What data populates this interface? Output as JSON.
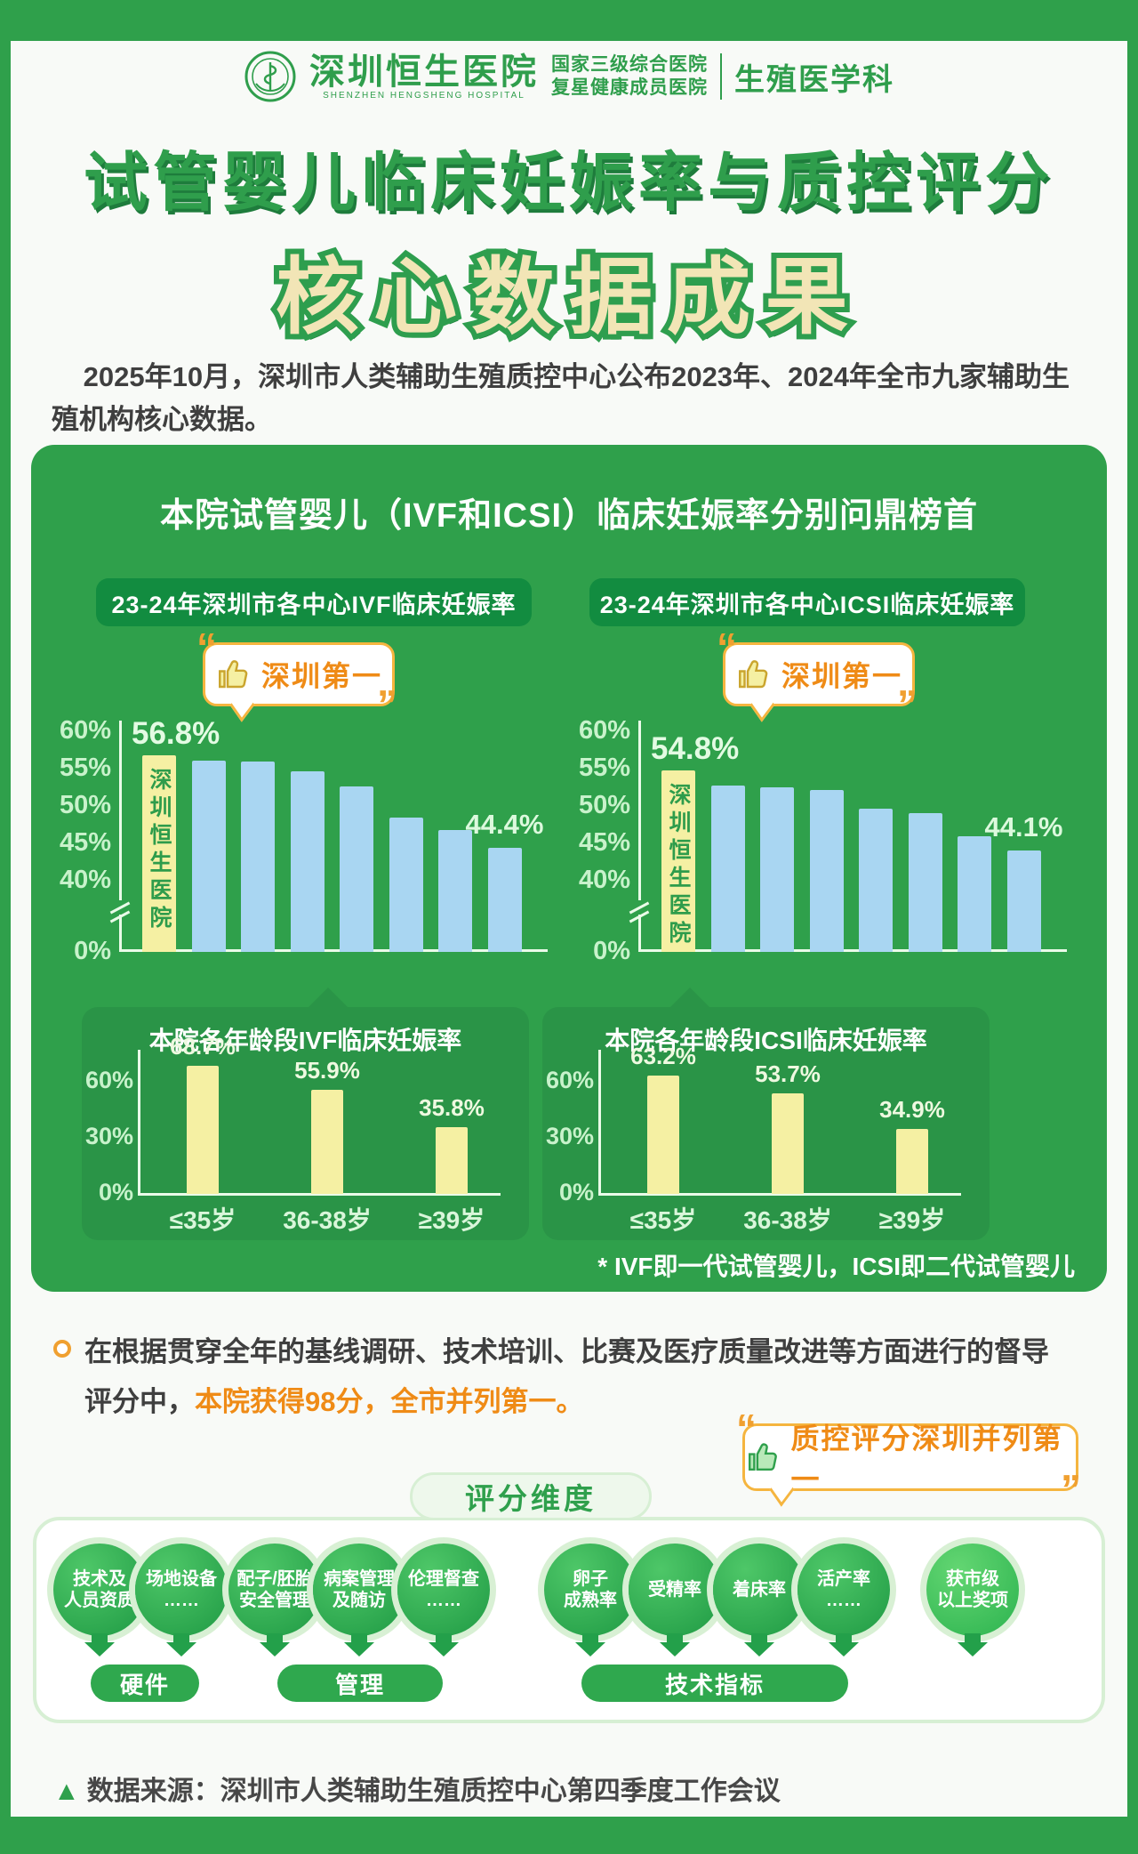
{
  "header": {
    "hospital_name": "深圳恒生医院",
    "hospital_name_en": "SHENZHEN HENGSHENG HOSPITAL",
    "accreditation_line1": "国家三级综合医院",
    "accreditation_line2": "复星健康成员医院",
    "department": "生殖医学科"
  },
  "title": {
    "line1": "试管婴儿临床妊娠率与质控评分",
    "line2": "核心数据成果"
  },
  "intro": "2025年10月，深圳市人类辅助生殖质控中心公布2023年、2024年全市九家辅助生殖机构核心数据。",
  "panel": {
    "title": "本院试管婴儿（IVF和ICSI）临床妊娠率分别问鼎榜首",
    "footnote": "* IVF即一代试管婴儿，ICSI即二代试管婴儿"
  },
  "score_paragraph": {
    "prefix": "在根据贯穿全年的基线调研、技术培训、比赛及医疗质量改进等方面进行的督导评分中，",
    "highlight": "本院获得98分，全市并列第一。"
  },
  "score_badge": "质控评分深圳并列第一",
  "dimensions": {
    "tab": "评分维度",
    "pins": [
      {
        "lines": [
          "技术及",
          "人员资质"
        ]
      },
      {
        "lines": [
          "场地设备",
          "……"
        ]
      },
      {
        "lines": [
          "配子/胚胎",
          "安全管理"
        ]
      },
      {
        "lines": [
          "病案管理",
          "及随访"
        ]
      },
      {
        "lines": [
          "伦理督查",
          "……"
        ]
      },
      {
        "lines": [
          "卵子",
          "成熟率"
        ]
      },
      {
        "lines": [
          "受精率"
        ]
      },
      {
        "lines": [
          "着床率"
        ]
      },
      {
        "lines": [
          "活产率",
          "……"
        ]
      },
      {
        "lines": [
          "获市级",
          "以上奖项"
        ]
      }
    ],
    "groups": [
      "硬件",
      "管理",
      "技术指标"
    ]
  },
  "footer": "数据来源：深圳市人类辅助生殖质控中心第四季度工作会议",
  "colors": {
    "brand_green": "#2fa04b",
    "dark_green_pill": "#128c40",
    "age_panel_green": "#2a9447",
    "yellow_bar": "#f5f0a3",
    "blue_bar": "#a9d6f2",
    "orange": "#ef8b16",
    "badge_border": "#f5b53f",
    "cream_title": "#f2e5b6"
  },
  "chart_data": [
    {
      "id": "ivf_city",
      "type": "bar",
      "title": "23-24年深圳市各中心IVF临床妊娠率",
      "badge": "深圳第一",
      "ylabel_format": "percent",
      "yticks": [
        60,
        55,
        50,
        45,
        40,
        0
      ],
      "axis_break": true,
      "values": [
        56.8,
        56.1,
        55.9,
        54.7,
        52.6,
        48.5,
        46.8,
        44.4
      ],
      "highlight": {
        "index": 0,
        "label": "深圳恒生医院",
        "value_label": "56.8%"
      },
      "last_value_label": "44.4%"
    },
    {
      "id": "icsi_city",
      "type": "bar",
      "title": "23-24年深圳市各中心ICSI临床妊娠率",
      "badge": "深圳第一",
      "ylabel_format": "percent",
      "yticks": [
        60,
        55,
        50,
        45,
        40,
        0
      ],
      "axis_break": true,
      "values": [
        54.8,
        52.7,
        52.5,
        52.1,
        49.6,
        49.1,
        45.9,
        44.1
      ],
      "highlight": {
        "index": 0,
        "label": "深圳恒生医院",
        "value_label": "54.8%"
      },
      "last_value_label": "44.1%"
    },
    {
      "id": "ivf_age",
      "type": "bar",
      "title": "本院各年龄段IVF临床妊娠率",
      "categories": [
        "≤35岁",
        "36-38岁",
        "≥39岁"
      ],
      "values": [
        68.7,
        55.9,
        35.8
      ],
      "yticks": [
        60,
        30,
        0
      ],
      "ylabel_format": "percent"
    },
    {
      "id": "icsi_age",
      "type": "bar",
      "title": "本院各年龄段ICSI临床妊娠率",
      "categories": [
        "≤35岁",
        "36-38岁",
        "≥39岁"
      ],
      "values": [
        63.2,
        53.7,
        34.9
      ],
      "yticks": [
        60,
        30,
        0
      ],
      "ylabel_format": "percent"
    }
  ]
}
